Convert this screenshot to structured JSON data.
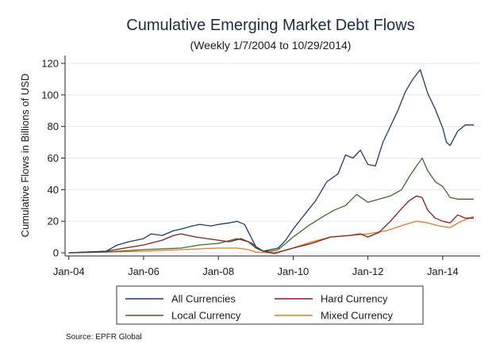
{
  "chart_data": {
    "type": "line",
    "title": "Cumulative Emerging Market Debt Flows",
    "subtitle": "(Weekly 1/7/2004 to 10/29/2014)",
    "ylabel": "Cumulative Flows in Billions of USD",
    "xlabel": "",
    "ylim": [
      -2,
      125
    ],
    "xlim": [
      2003.9,
      2015.0
    ],
    "y_ticks": [
      0,
      20,
      40,
      60,
      80,
      100,
      120
    ],
    "x_ticks": [
      {
        "value": 2004,
        "label": "Jan-04"
      },
      {
        "value": 2006,
        "label": "Jan-06"
      },
      {
        "value": 2008,
        "label": "Jan-08"
      },
      {
        "value": 2010,
        "label": "Jan-10"
      },
      {
        "value": 2012,
        "label": "Jan-12"
      },
      {
        "value": 2014,
        "label": "Jan-14"
      }
    ],
    "grid": "horizontal",
    "legend_position": "bottom",
    "source": "Source: EPFR Global",
    "series": [
      {
        "name": "All Currencies",
        "color": "#1f3a6e",
        "x": [
          2004.0,
          2004.5,
          2005.0,
          2005.3,
          2005.6,
          2006.0,
          2006.2,
          2006.5,
          2006.8,
          2007.0,
          2007.3,
          2007.5,
          2007.8,
          2008.0,
          2008.3,
          2008.5,
          2008.7,
          2008.85,
          2009.0,
          2009.2,
          2009.4,
          2009.6,
          2009.8,
          2010.0,
          2010.3,
          2010.6,
          2010.9,
          2011.2,
          2011.4,
          2011.6,
          2011.8,
          2012.0,
          2012.2,
          2012.4,
          2012.6,
          2012.8,
          2013.0,
          2013.2,
          2013.4,
          2013.6,
          2013.8,
          2014.0,
          2014.1,
          2014.2,
          2014.4,
          2014.6,
          2014.83
        ],
        "values": [
          0,
          0.5,
          1,
          5,
          7,
          9,
          12,
          11,
          14,
          15,
          17,
          18,
          17,
          18,
          19,
          20,
          18,
          11,
          4,
          1,
          2,
          3,
          8,
          15,
          24,
          33,
          45,
          50,
          62,
          60,
          65,
          56,
          55,
          70,
          80,
          90,
          102,
          110,
          116,
          101,
          91,
          79,
          70,
          68,
          77,
          81,
          81
        ]
      },
      {
        "name": "Hard Currency",
        "color": "#8b1a1a",
        "x": [
          2004.0,
          2004.5,
          2005.0,
          2005.5,
          2006.0,
          2006.5,
          2006.8,
          2007.0,
          2007.4,
          2007.7,
          2008.0,
          2008.3,
          2008.6,
          2008.9,
          2009.1,
          2009.3,
          2009.5,
          2009.7,
          2010.0,
          2010.5,
          2011.0,
          2011.5,
          2011.8,
          2012.0,
          2012.3,
          2012.6,
          2012.9,
          2013.1,
          2013.3,
          2013.45,
          2013.6,
          2013.8,
          2014.0,
          2014.2,
          2014.4,
          2014.6,
          2014.83
        ],
        "values": [
          0,
          0.5,
          1,
          3,
          5,
          8,
          11,
          12,
          10,
          9,
          8,
          7,
          9,
          6,
          2,
          0.5,
          -0.5,
          1,
          3,
          6,
          10,
          11,
          12,
          10,
          13,
          20,
          28,
          33,
          36,
          35,
          27,
          22,
          20,
          19,
          24,
          22,
          22
        ]
      },
      {
        "name": "Local Currency",
        "color": "#3d6b2a",
        "x": [
          2004.0,
          2005.0,
          2006.0,
          2007.0,
          2007.5,
          2008.0,
          2008.5,
          2008.8,
          2009.0,
          2009.2,
          2009.4,
          2009.6,
          2009.8,
          2010.0,
          2010.4,
          2010.8,
          2011.1,
          2011.4,
          2011.7,
          2012.0,
          2012.3,
          2012.6,
          2012.9,
          2013.1,
          2013.3,
          2013.45,
          2013.6,
          2013.8,
          2014.0,
          2014.2,
          2014.4,
          2014.6,
          2014.83
        ],
        "values": [
          0,
          0.5,
          2,
          3,
          5,
          6,
          9,
          7,
          3,
          1,
          1,
          2,
          6,
          10,
          17,
          23,
          27,
          30,
          37,
          32,
          34,
          36,
          40,
          48,
          55,
          60,
          52,
          45,
          42,
          35,
          34,
          34,
          34
        ]
      },
      {
        "name": "Mixed Currency",
        "color": "#e87722",
        "x": [
          2004.0,
          2005.0,
          2006.0,
          2007.0,
          2008.0,
          2008.5,
          2008.8,
          2009.0,
          2009.3,
          2009.6,
          2010.0,
          2010.5,
          2011.0,
          2011.5,
          2012.0,
          2012.5,
          2013.0,
          2013.3,
          2013.6,
          2013.9,
          2014.2,
          2014.5,
          2014.83
        ],
        "values": [
          0,
          0.5,
          1,
          2,
          3,
          3,
          2,
          0.5,
          0,
          0.5,
          3,
          7,
          10,
          11,
          12,
          14,
          18,
          20,
          19,
          17,
          16,
          20,
          23
        ]
      }
    ]
  }
}
